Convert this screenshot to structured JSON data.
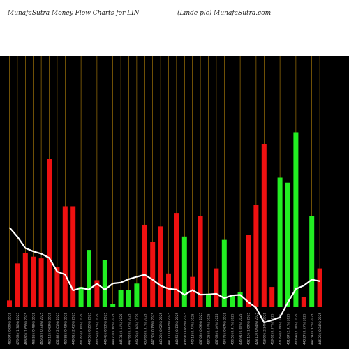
{
  "header": {
    "title_left": "MunafaSutra  Money Flow  Charts for LIN",
    "title_right": "(Linde    plc) MunafaSutra.com"
  },
  "colors": {
    "background": "#000000",
    "header": "#ffffff",
    "gridline": "#b8860b",
    "buy": "#22ee22",
    "sell": "#ee1111",
    "price_line": "#ffffff",
    "label": "#bbbbbb"
  },
  "chart_data": {
    "type": "bar",
    "grid": "vertical",
    "categories": [
      "482.97 (-0.90%) 2025",
      "476.68 (-1.30%) 2025",
      "468.80 (-1.65%) 2025",
      "466.56 (-0.48%) 2025",
      "465.02 (-0.33%) 2025",
      "462.12 (-0.63%) 2025",
      "452.82 (-2.01%) 2025",
      "450.88 (-0.43%) 2025",
      "440.01 (-2.41%) 2025",
      "441.66 (0.38%) 2025",
      "440.55 (-0.25%) 2025",
      "444.58 (0.92%) 2025",
      "440.45 (-0.93%) 2025",
      "444.70 (0.96%) 2025",
      "445.31 (0.14%) 2025",
      "447.65 (0.53%) 2025",
      "449.28 (0.36%) 2025",
      "450.68 (0.31%) 2025",
      "447.30 (-0.75%) 2025",
      "443.20 (-0.92%) 2025",
      "441.11 (-0.47%) 2025",
      "440.55 (-0.13%) 2025",
      "436.92 (-0.82%) 2025",
      "440.13 (0.73%) 2025",
      "437.08 (-0.69%) 2025",
      "437.25 (0.04%) 2025",
      "437.68 (0.10%) 2025",
      "434.76 (-0.67%) 2025",
      "436.55 (0.41%) 2025",
      "436.91 (0.08%) 2025",
      "432.16 (-1.09%) 2025",
      "428.10 (-0.94%) 2025",
      "418.09 (-2.34%) 2025",
      "419.62 (0.37%) 2025",
      "421.69 (0.49%) 2025",
      "431.87 (2.41%) 2025",
      "440.93 (2.10%) 2025",
      "443.27 (0.53%) 2025",
      "447.34 (0.92%) 2025",
      "446.28 (-0.24%) 2025"
    ],
    "series": [
      {
        "values": [
          0.04,
          0.26,
          0.32,
          0.3,
          0.29,
          0.88,
          0.24,
          0.6,
          0.6,
          0.12,
          0.34,
          0.16,
          0.28,
          0.02,
          0.1,
          0.1,
          0.14,
          0.49,
          0.39,
          0.48,
          0.2,
          0.56,
          0.42,
          0.18,
          0.54,
          0.08,
          0.23,
          0.4,
          0.07,
          0.09,
          0.43,
          0.61,
          0.97,
          0.12,
          0.77,
          0.74,
          1.04,
          0.06,
          0.54,
          0.23
        ],
        "direction": [
          "sell",
          "sell",
          "sell",
          "sell",
          "sell",
          "sell",
          "sell",
          "sell",
          "sell",
          "buy",
          "buy",
          "sell",
          "buy",
          "buy",
          "buy",
          "buy",
          "buy",
          "sell",
          "sell",
          "sell",
          "sell",
          "sell",
          "buy",
          "sell",
          "sell",
          "buy",
          "sell",
          "buy",
          "buy",
          "buy",
          "sell",
          "sell",
          "sell",
          "sell",
          "buy",
          "buy",
          "buy",
          "sell",
          "buy",
          "sell"
        ]
      },
      {
        "values": [
          482.97,
          476.68,
          468.8,
          466.56,
          465.02,
          462.12,
          452.82,
          450.88,
          440.01,
          441.66,
          440.55,
          444.58,
          440.45,
          444.7,
          445.31,
          447.65,
          449.28,
          450.68,
          447.3,
          443.2,
          441.11,
          440.55,
          436.92,
          440.13,
          437.08,
          437.25,
          437.68,
          434.76,
          436.55,
          436.91,
          432.16,
          428.1,
          418.09,
          419.62,
          421.69,
          431.87,
          440.93,
          443.27,
          447.34,
          446.28
        ]
      }
    ],
    "flow_ylim": [
      0,
      1.1
    ],
    "price_ylim": [
      400,
      600
    ]
  }
}
